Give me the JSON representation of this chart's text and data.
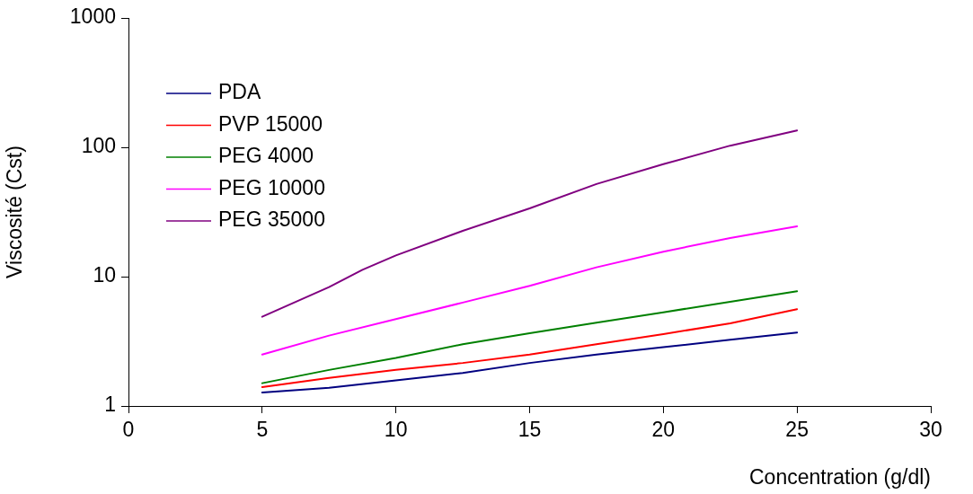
{
  "chart_data": {
    "type": "line",
    "xlabel": "Concentration (g/dl)",
    "ylabel": "Viscosité (Cst)",
    "log": "y",
    "grid": false,
    "legend": "top left",
    "marker": "none",
    "line_style": "solid",
    "x": [
      5,
      7.5,
      10,
      12.5,
      15,
      17.5,
      20,
      22.5,
      25
    ],
    "xlim": [
      0,
      30
    ],
    "xticks": [
      0,
      5,
      10,
      15,
      20,
      25,
      30
    ],
    "ylim": [
      1,
      1000
    ],
    "yticks": [
      1,
      10,
      100,
      1000
    ],
    "series": [
      {
        "name": "PDA",
        "color": "#000080",
        "values": [
          1.27,
          1.38,
          1.58,
          1.8,
          2.15,
          2.5,
          2.85,
          3.25,
          3.7
        ]
      },
      {
        "name": "PVP 15000",
        "color": "#ff0000",
        "values": [
          1.4,
          1.65,
          1.9,
          2.15,
          2.5,
          3.0,
          3.6,
          4.35,
          5.6
        ]
      },
      {
        "name": "PEG 4000",
        "color": "#008000",
        "values": [
          1.5,
          1.9,
          2.35,
          3.0,
          3.65,
          4.4,
          5.3,
          6.4,
          7.7
        ]
      },
      {
        "name": "PEG 10000",
        "color": "#ff00ff",
        "values": [
          2.5,
          3.5,
          4.7,
          6.3,
          8.5,
          11.8,
          15.6,
          19.9,
          24.5
        ]
      },
      {
        "name": "PEG 35000",
        "color": "#800080",
        "x": [
          5,
          7.5,
          8.75,
          10,
          12.5,
          15,
          17.5,
          20,
          22.5,
          25
        ],
        "values": [
          4.9,
          8.3,
          11.3,
          14.6,
          22.6,
          33.7,
          52,
          74,
          103,
          135
        ]
      }
    ]
  }
}
